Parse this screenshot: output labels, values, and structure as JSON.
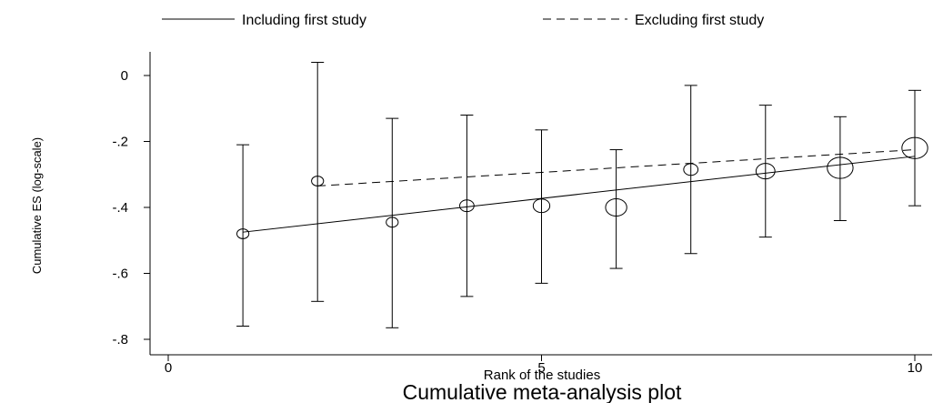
{
  "chart_data": {
    "type": "scatter",
    "title": "Cumulative meta-analysis plot",
    "xlabel": "Rank of the studies",
    "ylabel": "Cumulative ES (log-scale)",
    "xlim": [
      0,
      10
    ],
    "ylim": [
      -0.8,
      0
    ],
    "xticks": [
      {
        "v": 0,
        "label": "0"
      },
      {
        "v": 5,
        "label": "5"
      },
      {
        "v": 10,
        "label": "10"
      }
    ],
    "yticks": [
      {
        "v": 0,
        "label": "0"
      },
      {
        "v": -0.2,
        "label": "-.2"
      },
      {
        "v": -0.4,
        "label": "-.4"
      },
      {
        "v": -0.6,
        "label": "-.6"
      },
      {
        "v": -0.8,
        "label": "-.8"
      }
    ],
    "legend": {
      "placement": "top",
      "entries": [
        {
          "label": "Including first study",
          "style": "solid"
        },
        {
          "label": "Excluding first study",
          "style": "dashed"
        }
      ]
    },
    "points": [
      {
        "rank": 1,
        "es": -0.48,
        "ci_low": -0.76,
        "ci_high": -0.21,
        "weight": 2
      },
      {
        "rank": 2,
        "es": -0.32,
        "ci_low": -0.685,
        "ci_high": 0.04,
        "weight": 2
      },
      {
        "rank": 3,
        "es": -0.445,
        "ci_low": -0.765,
        "ci_high": -0.13,
        "weight": 2
      },
      {
        "rank": 4,
        "es": -0.395,
        "ci_low": -0.67,
        "ci_high": -0.12,
        "weight": 2.5
      },
      {
        "rank": 5,
        "es": -0.395,
        "ci_low": -0.63,
        "ci_high": -0.165,
        "weight": 3
      },
      {
        "rank": 6,
        "es": -0.4,
        "ci_low": -0.585,
        "ci_high": -0.225,
        "weight": 4
      },
      {
        "rank": 7,
        "es": -0.285,
        "ci_low": -0.54,
        "ci_high": -0.03,
        "weight": 2.5
      },
      {
        "rank": 8,
        "es": -0.29,
        "ci_low": -0.49,
        "ci_high": -0.09,
        "weight": 3.5
      },
      {
        "rank": 9,
        "es": -0.28,
        "ci_low": -0.44,
        "ci_high": -0.125,
        "weight": 5
      },
      {
        "rank": 10,
        "es": -0.22,
        "ci_low": -0.395,
        "ci_high": -0.045,
        "weight": 5
      }
    ],
    "series": [
      {
        "name": "Including first study",
        "style": "solid",
        "x": [
          1,
          10
        ],
        "y": [
          -0.475,
          -0.245
        ]
      },
      {
        "name": "Excluding first study",
        "style": "dashed",
        "x": [
          2,
          10
        ],
        "y": [
          -0.335,
          -0.225
        ]
      }
    ],
    "grid": false
  }
}
